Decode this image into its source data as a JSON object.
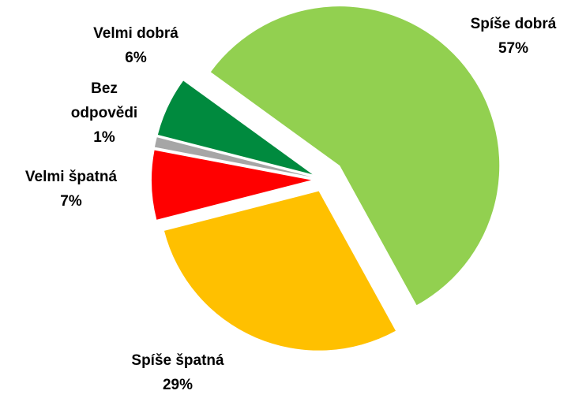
{
  "chart_data": {
    "type": "pie",
    "categories": [
      "Spíše dobrá",
      "Spíše špatná",
      "Velmi špatná",
      "Bez odpovědi",
      "Velmi dobrá"
    ],
    "values": [
      57,
      29,
      7,
      1,
      6
    ],
    "value_labels": [
      "57%",
      "29%",
      "7%",
      "1%",
      "6%"
    ],
    "colors": [
      "#92d050",
      "#ffc000",
      "#ff0000",
      "#a6a6a6",
      "#008a3e"
    ]
  }
}
